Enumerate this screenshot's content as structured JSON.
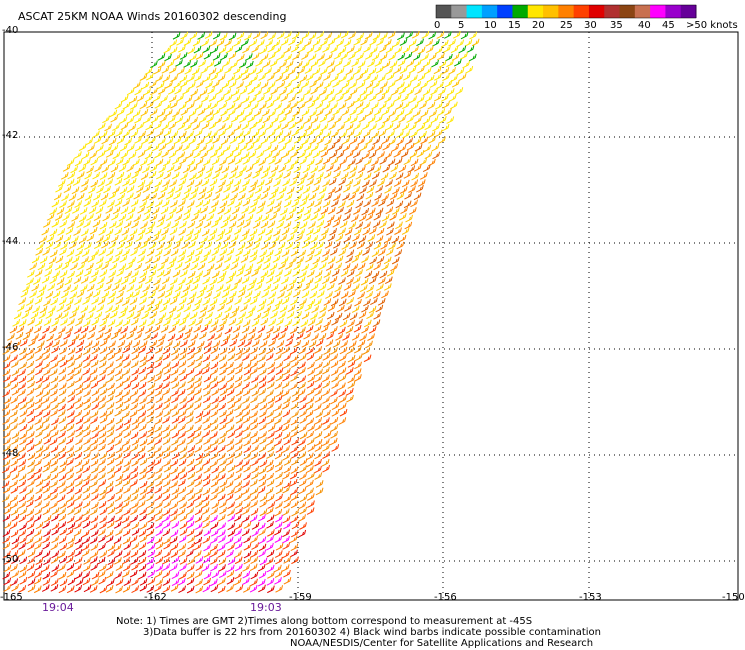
{
  "title": "ASCAT 25KM NOAA Winds 20160302 descending",
  "legend": {
    "labels": [
      "0",
      "5",
      "10",
      "15",
      "20",
      "25",
      "30",
      "35",
      "40",
      "45",
      ">50 knots"
    ],
    "colors": [
      "#555555",
      "#999999",
      "#00e5ff",
      "#00a0ff",
      "#0040ff",
      "#00aa00",
      "#ffe600",
      "#ffc000",
      "#ff8000",
      "#ff4000",
      "#e00000",
      "#b03030",
      "#8b4513",
      "#c87050",
      "#ff00ff",
      "#9900cc",
      "#660099"
    ]
  },
  "lat_labels": [
    "-40",
    "-42",
    "-44",
    "-46",
    "-48",
    "-50"
  ],
  "lon_labels": [
    "-165",
    "-162",
    "-159",
    "-156",
    "-153",
    "-150"
  ],
  "time_labels": [
    "19:04",
    "19:03"
  ],
  "notes": [
    "Note: 1) Times are GMT 2)Times along bottom correspond to measurement at -45S",
    "3)Data buffer is 22 hrs from 20160302 4) Black wind barbs indicate possible contamination",
    "NOAA/NESDIS/Center for Satellite Applications and Research"
  ],
  "wind_ranges": [
    {
      "name": "north",
      "colors": [
        "#ffe600",
        "#ffc000",
        "#00aa00"
      ]
    },
    {
      "name": "middle",
      "colors": [
        "#ffe600",
        "#ffc000",
        "#ff8000"
      ]
    },
    {
      "name": "south",
      "colors": [
        "#ff8000",
        "#ff4000",
        "#e00000",
        "#ff00ff"
      ]
    }
  ]
}
